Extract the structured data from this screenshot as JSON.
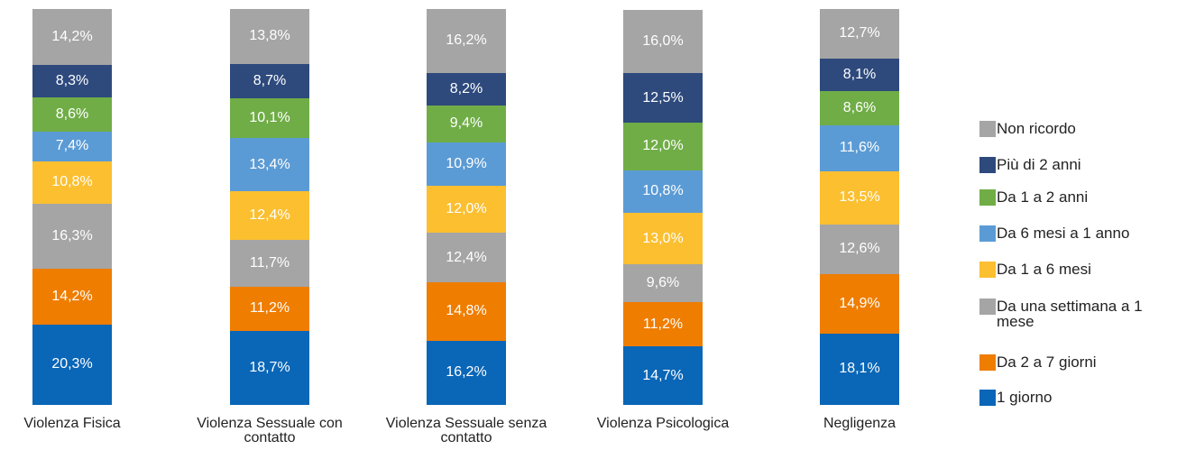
{
  "chart_data": {
    "type": "stacked_bar",
    "categories": [
      "Violenza Fisica",
      "Violenza Sessuale con contatto",
      "Violenza Sessuale senza contatto",
      "Violenza Psicologica",
      "Negligenza"
    ],
    "ylim": [
      0,
      100
    ],
    "series": [
      {
        "name": "1 giorno",
        "color": "#0a66b7",
        "values": [
          20.3,
          18.7,
          16.2,
          14.7,
          18.1
        ],
        "value_labels": [
          "20,3%",
          "18,7%",
          "16,2%",
          "14,7%",
          "18,1%"
        ]
      },
      {
        "name": "Da 2 a 7 giorni",
        "color": "#ef7d00",
        "values": [
          14.2,
          11.2,
          14.8,
          11.2,
          14.9
        ],
        "value_labels": [
          "14,2%",
          "11,2%",
          "14,8%",
          "11,2%",
          "14,9%"
        ]
      },
      {
        "name": "Da una settimana a 1 mese",
        "color": "#a5a5a5",
        "values": [
          16.3,
          11.7,
          12.4,
          9.6,
          12.6
        ],
        "value_labels": [
          "16,3%",
          "11,7%",
          "12,4%",
          "9,6%",
          "12,6%"
        ]
      },
      {
        "name": "Da 1 a 6 mesi",
        "color": "#fbbf30",
        "values": [
          10.8,
          12.4,
          12.0,
          13.0,
          13.5
        ],
        "value_labels": [
          "10,8%",
          "12,4%",
          "12,0%",
          "13,0%",
          "13,5%"
        ]
      },
      {
        "name": "Da 6 mesi a 1 anno",
        "color": "#5b9bd5",
        "values": [
          7.4,
          13.4,
          10.9,
          10.8,
          11.6
        ],
        "value_labels": [
          "7,4%",
          "13,4%",
          "10,9%",
          "10,8%",
          "11,6%"
        ]
      },
      {
        "name": "Da 1 a 2 anni",
        "color": "#70ad47",
        "values": [
          8.6,
          10.1,
          9.4,
          12.0,
          8.6
        ],
        "value_labels": [
          "8,6%",
          "10,1%",
          "9,4%",
          "12,0%",
          "8,6%"
        ]
      },
      {
        "name": "Più di 2 anni",
        "color": "#2e4a7d",
        "values": [
          8.3,
          8.7,
          8.2,
          12.5,
          8.1
        ],
        "value_labels": [
          "8,3%",
          "8,7%",
          "8,2%",
          "12,5%",
          "8,1%"
        ]
      },
      {
        "name": "Non ricordo",
        "color": "#a5a5a5",
        "values": [
          14.2,
          13.8,
          16.2,
          16.0,
          12.7
        ],
        "value_labels": [
          "14,2%",
          "13,8%",
          "16,2%",
          "16,0%",
          "12,7%"
        ]
      }
    ]
  }
}
